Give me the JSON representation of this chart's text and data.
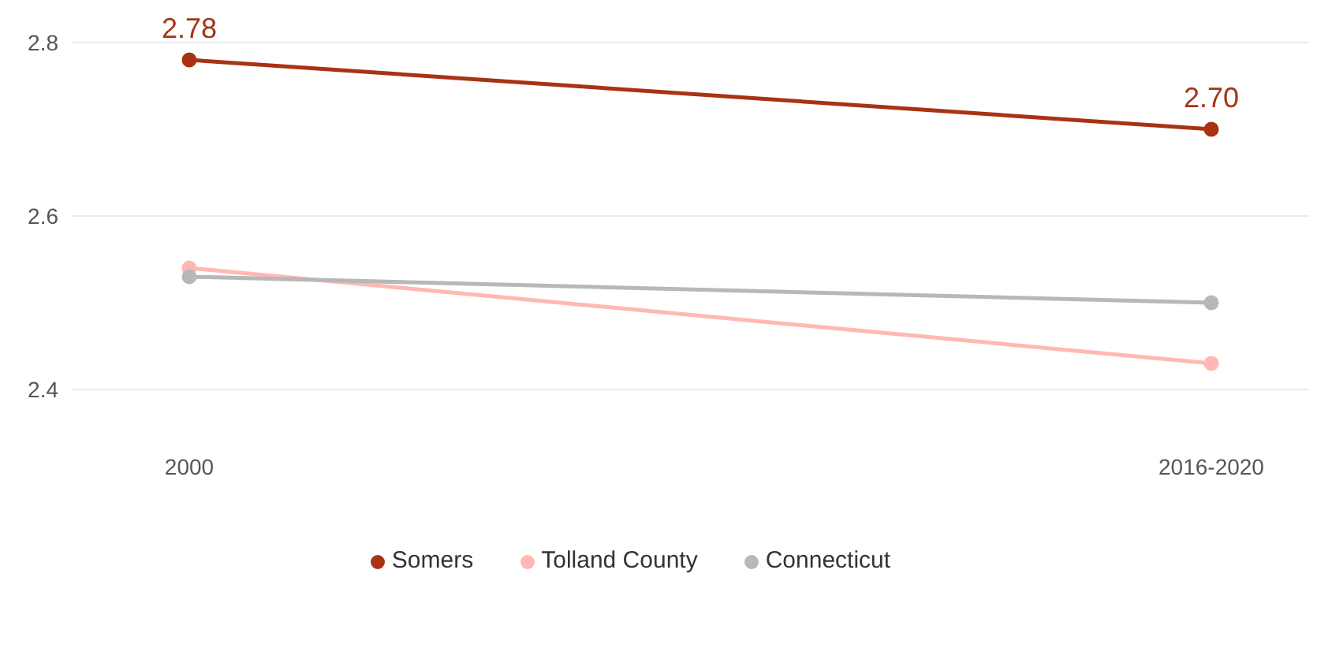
{
  "chart_data": {
    "type": "line",
    "categories": [
      "2000",
      "2016-2020"
    ],
    "series": [
      {
        "name": "Somers",
        "color": "#a93215",
        "values": [
          2.78,
          2.7
        ],
        "value_labels": [
          "2.78",
          "2.70"
        ]
      },
      {
        "name": "Tolland County",
        "color": "#ffb8b3",
        "values": [
          2.54,
          2.43
        ]
      },
      {
        "name": "Connecticut",
        "color": "#b8b8b8",
        "values": [
          2.53,
          2.5
        ]
      }
    ],
    "ylim": [
      2.4,
      2.8
    ],
    "yticks": [
      2.4,
      2.6,
      2.8
    ],
    "grid": "y",
    "legend": "bottom",
    "marker": "circle",
    "line_style": "solid"
  }
}
